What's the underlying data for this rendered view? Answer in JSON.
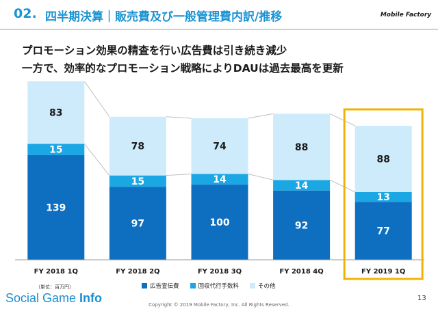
{
  "header": {
    "section_number": "02.",
    "section_title": "四半期決算｜販売費及び一般管理費内訳/推移",
    "logo_text": "Mobile Factory"
  },
  "headline": {
    "line1": "プロモーション効果の精査を行い広告費は引き続き減少",
    "line2": "一方で、効率的なプロモーション戦略によりDAUは過去最高を更新"
  },
  "chart_data": {
    "type": "bar",
    "stacked": true,
    "categories": [
      "FY 2018 1Q",
      "FY 2018 2Q",
      "FY 2018 3Q",
      "FY 2018 4Q",
      "FY 2019 1Q"
    ],
    "series": [
      {
        "name": "広告宣伝費",
        "values": [
          139,
          97,
          100,
          92,
          77
        ],
        "color": "#0e6fc0"
      },
      {
        "name": "回収代行手数料",
        "values": [
          15,
          15,
          14,
          14,
          13
        ],
        "color": "#1ba6e4"
      },
      {
        "name": "その他",
        "values": [
          83,
          78,
          74,
          88,
          88
        ],
        "color": "#cdebfa"
      }
    ],
    "highlight_category": "FY 2019 1Q",
    "highlight_color": "#f0b400",
    "connector_lines": true,
    "ylim": [
      0,
      237
    ]
  },
  "footer": {
    "unit_note": "（単位：百万円）",
    "watermark_regular": "Social Game ",
    "watermark_bold": "Info",
    "copyright": "Copyright © 2019 Mobile Factory, Inc. All Rights Reserved.",
    "page_number": "13"
  }
}
